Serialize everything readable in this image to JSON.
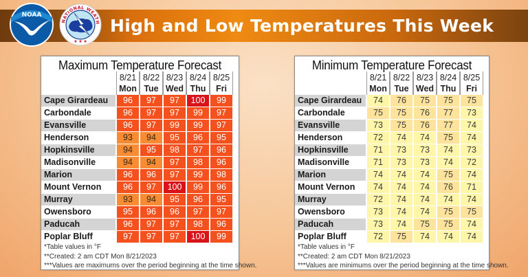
{
  "header": {
    "title": "High and Low Temperatures This Week",
    "logos": [
      {
        "name": "noaa-logo",
        "text": "NOAA"
      },
      {
        "name": "nws-logo",
        "text": "NATIONAL WEATHER SERVICE"
      }
    ],
    "colors": {
      "bar_dark": "#6e3a0d",
      "bar_bright": "#ef8a12",
      "title": "#ffffff"
    }
  },
  "days": [
    {
      "date": "8/21",
      "dow": "Mon"
    },
    {
      "date": "8/22",
      "dow": "Tue"
    },
    {
      "date": "8/23",
      "dow": "Wed"
    },
    {
      "date": "8/24",
      "dow": "Thu"
    },
    {
      "date": "8/25",
      "dow": "Fri"
    }
  ],
  "max_table": {
    "title": "Maximum Temperature Forecast",
    "rows": [
      {
        "city": "Cape Girardeau",
        "values": [
          96,
          97,
          97,
          100,
          99
        ]
      },
      {
        "city": "Carbondale",
        "values": [
          96,
          97,
          97,
          99,
          97
        ]
      },
      {
        "city": "Evansville",
        "values": [
          96,
          97,
          99,
          99,
          97
        ]
      },
      {
        "city": "Henderson",
        "values": [
          93,
          94,
          95,
          96,
          95
        ]
      },
      {
        "city": "Hopkinsville",
        "values": [
          94,
          95,
          98,
          97,
          96
        ]
      },
      {
        "city": "Madisonville",
        "values": [
          94,
          94,
          97,
          98,
          96
        ]
      },
      {
        "city": "Marion",
        "values": [
          96,
          96,
          97,
          99,
          98
        ]
      },
      {
        "city": "Mount Vernon",
        "values": [
          96,
          97,
          100,
          99,
          96
        ]
      },
      {
        "city": "Murray",
        "values": [
          93,
          94,
          95,
          96,
          95
        ]
      },
      {
        "city": "Owensboro",
        "values": [
          95,
          96,
          96,
          97,
          97
        ]
      },
      {
        "city": "Paducah",
        "values": [
          96,
          97,
          97,
          98,
          96
        ]
      },
      {
        "city": "Poplar Bluff",
        "values": [
          97,
          97,
          97,
          100,
          99
        ]
      }
    ],
    "footnotes": [
      "*Table values in °F",
      "**Created: 2 am CDT Mon 8/21/2023",
      "***Values are maximums over the period beginning at the time shown."
    ],
    "colors": {
      "94_or_less": "#f88c35",
      "95_to_99": "#f4511e",
      "100_plus": "#d8141a"
    }
  },
  "min_table": {
    "title": "Minimum Temperature Forecast",
    "rows": [
      {
        "city": "Cape Girardeau",
        "values": [
          74,
          76,
          75,
          75,
          75
        ]
      },
      {
        "city": "Carbondale",
        "values": [
          75,
          75,
          76,
          77,
          73
        ]
      },
      {
        "city": "Evansville",
        "values": [
          73,
          75,
          76,
          77,
          74
        ]
      },
      {
        "city": "Henderson",
        "values": [
          72,
          74,
          74,
          75,
          74
        ]
      },
      {
        "city": "Hopkinsville",
        "values": [
          71,
          73,
          73,
          74,
          73
        ]
      },
      {
        "city": "Madisonville",
        "values": [
          71,
          73,
          73,
          74,
          72
        ]
      },
      {
        "city": "Marion",
        "values": [
          74,
          74,
          74,
          75,
          74
        ]
      },
      {
        "city": "Mount Vernon",
        "values": [
          74,
          74,
          74,
          76,
          71
        ]
      },
      {
        "city": "Murray",
        "values": [
          72,
          74,
          74,
          74,
          74
        ]
      },
      {
        "city": "Owensboro",
        "values": [
          73,
          74,
          74,
          75,
          75
        ]
      },
      {
        "city": "Paducah",
        "values": [
          73,
          74,
          75,
          75,
          74
        ]
      },
      {
        "city": "Poplar Bluff",
        "values": [
          72,
          75,
          74,
          74,
          74
        ]
      }
    ],
    "footnotes": [
      "*Table values in °F",
      "**Created: 2 am CDT Mon 8/21/2023",
      "***Values are minimums over the period beginning at the time shown."
    ],
    "colors": {
      "74_or_less": "#fff6a9",
      "75_plus": "#fde39c"
    }
  }
}
